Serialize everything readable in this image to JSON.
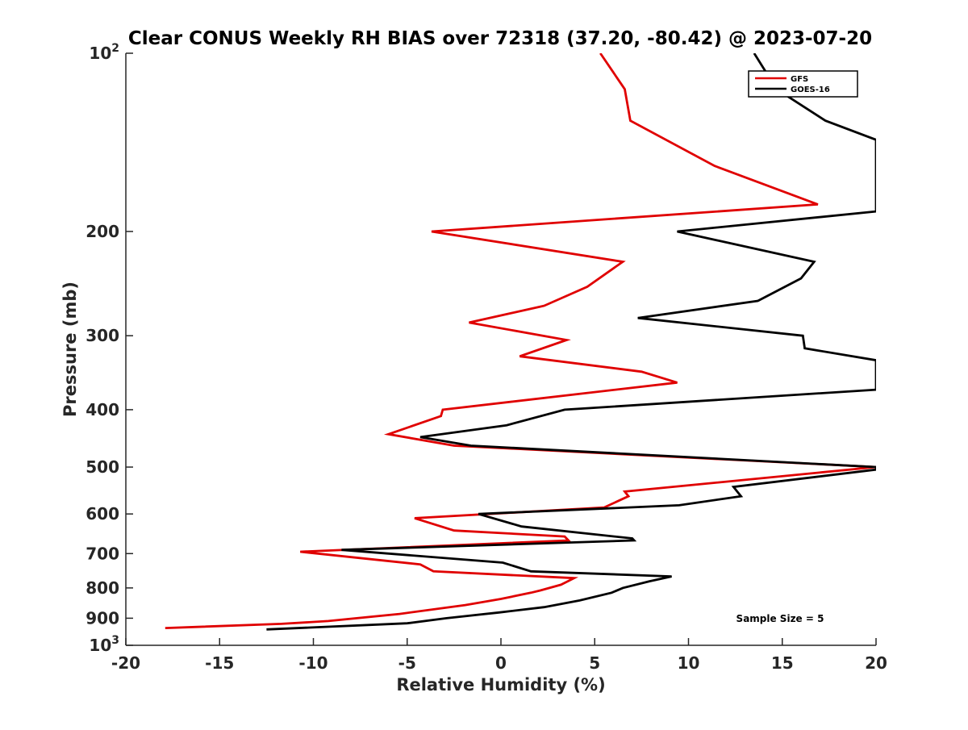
{
  "chart_data": {
    "type": "line",
    "title": "Clear CONUS Weekly RH BIAS over 72318 (37.20, -80.42) @ 2023-07-20",
    "xlabel": "Relative Humidity (%)",
    "ylabel": "Pressure (mb)",
    "xlim": [
      -20,
      20
    ],
    "ylim": [
      100,
      1000
    ],
    "y_scale": "log",
    "y_reversed": true,
    "grid": false,
    "legend_position": "top-right",
    "x_ticks": [
      -20,
      -15,
      -10,
      -5,
      0,
      5,
      10,
      15,
      20
    ],
    "x_tick_labels": [
      "-20",
      "-15",
      "-10",
      "-5",
      "0",
      "5",
      "10",
      "15",
      "20"
    ],
    "y_ticks": [
      100,
      200,
      300,
      400,
      500,
      600,
      700,
      800,
      900,
      1000
    ],
    "y_tick_labels": [
      {
        "base": "10",
        "exp": "2"
      },
      {
        "base": "200",
        "exp": ""
      },
      {
        "base": "300",
        "exp": ""
      },
      {
        "base": "400",
        "exp": ""
      },
      {
        "base": "500",
        "exp": ""
      },
      {
        "base": "600",
        "exp": ""
      },
      {
        "base": "700",
        "exp": ""
      },
      {
        "base": "800",
        "exp": ""
      },
      {
        "base": "900",
        "exp": ""
      },
      {
        "base": "10",
        "exp": "3"
      }
    ],
    "annotation": "Sample Size = 5",
    "series": [
      {
        "name": "GFS",
        "color": "#e00000",
        "points": [
          [
            5.3,
            100
          ],
          [
            6.6,
            115
          ],
          [
            6.9,
            130
          ],
          [
            11.4,
            155
          ],
          [
            16.9,
            180
          ],
          [
            -3.7,
            200
          ],
          [
            6.5,
            225
          ],
          [
            4.6,
            248
          ],
          [
            2.3,
            267
          ],
          [
            -1.7,
            285
          ],
          [
            3.5,
            305
          ],
          [
            1.0,
            325
          ],
          [
            7.5,
            345
          ],
          [
            9.4,
            360
          ],
          [
            -3.1,
            400
          ],
          [
            -3.2,
            410
          ],
          [
            -6.0,
            440
          ],
          [
            -2.5,
            460
          ],
          [
            20.0,
            500
          ],
          [
            6.6,
            550
          ],
          [
            6.8,
            560
          ],
          [
            5.5,
            585
          ],
          [
            -4.6,
            610
          ],
          [
            -2.5,
            640
          ],
          [
            3.4,
            655
          ],
          [
            3.6,
            665
          ],
          [
            -10.7,
            695
          ],
          [
            -4.3,
            730
          ],
          [
            -3.6,
            750
          ],
          [
            3.9,
            770
          ],
          [
            3.2,
            790
          ],
          [
            2.1,
            808
          ],
          [
            1.6,
            815
          ],
          [
            0.0,
            835
          ],
          [
            -1.9,
            855
          ],
          [
            -5.4,
            885
          ],
          [
            -9.2,
            910
          ],
          [
            -11.7,
            920
          ],
          [
            -17.9,
            935
          ]
        ]
      },
      {
        "name": "GOES-16",
        "color": "#000000",
        "points": [
          [
            13.5,
            100
          ],
          [
            14.7,
            115
          ],
          [
            17.3,
            130
          ],
          [
            20.0,
            140
          ],
          [
            20.0,
            185
          ],
          [
            9.4,
            200
          ],
          [
            16.7,
            225
          ],
          [
            16.0,
            240
          ],
          [
            13.7,
            262
          ],
          [
            7.3,
            280
          ],
          [
            16.1,
            300
          ],
          [
            16.2,
            315
          ],
          [
            20.0,
            330
          ],
          [
            20.0,
            370
          ],
          [
            3.4,
            400
          ],
          [
            0.3,
            425
          ],
          [
            -4.3,
            445
          ],
          [
            -1.6,
            460
          ],
          [
            20.0,
            500
          ],
          [
            20.0,
            505
          ],
          [
            12.4,
            540
          ],
          [
            12.8,
            560
          ],
          [
            9.5,
            580
          ],
          [
            -1.2,
            600
          ],
          [
            1.1,
            630
          ],
          [
            7.0,
            660
          ],
          [
            7.1,
            665
          ],
          [
            -8.5,
            690
          ],
          [
            0.1,
            725
          ],
          [
            1.6,
            750
          ],
          [
            9.1,
            765
          ],
          [
            7.9,
            780
          ],
          [
            6.5,
            800
          ],
          [
            5.9,
            815
          ],
          [
            4.2,
            840
          ],
          [
            2.3,
            862
          ],
          [
            -0.1,
            880
          ],
          [
            -2.9,
            900
          ],
          [
            -5.0,
            918
          ],
          [
            -12.5,
            940
          ]
        ]
      }
    ]
  }
}
